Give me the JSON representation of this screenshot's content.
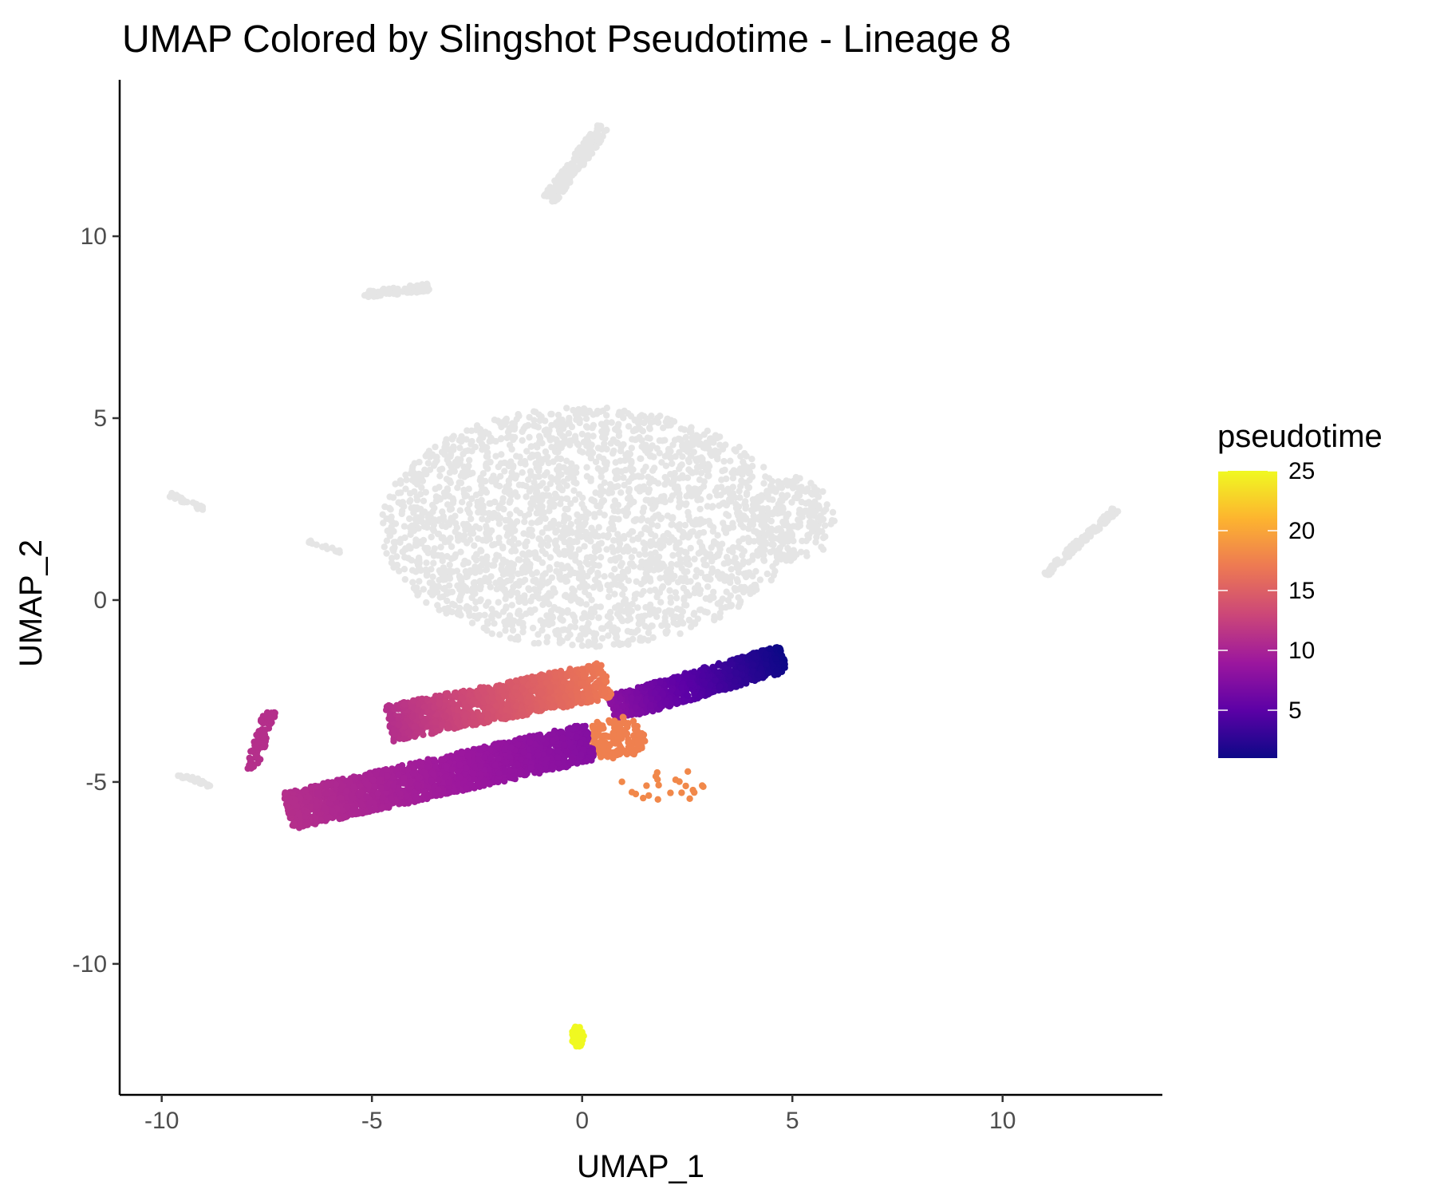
{
  "chart_data": {
    "type": "scatter",
    "title": "UMAP Colored by Slingshot Pseudotime - Lineage 8",
    "xlabel": "UMAP_1",
    "ylabel": "UMAP_2",
    "xlim": [
      -11,
      13.8
    ],
    "ylim": [
      -13.6,
      14.3
    ],
    "x_ticks": [
      -10,
      -5,
      0,
      5,
      10
    ],
    "x_tick_labels": [
      "-10",
      "-5",
      "0",
      "5",
      "10"
    ],
    "y_ticks": [
      -10,
      -5,
      0,
      5,
      10
    ],
    "y_tick_labels": [
      "-10",
      "-5",
      "0",
      "5",
      "10"
    ],
    "grid": false,
    "legend": {
      "title": "pseudotime",
      "placement": "right",
      "type": "colorbar",
      "range": [
        1,
        25
      ],
      "breaks": [
        5,
        10,
        15,
        20,
        25
      ],
      "break_labels": [
        "5",
        "10",
        "15",
        "20",
        "25"
      ],
      "palette": "plasma",
      "palette_stops": [
        "#0d0887",
        "#5c01a6",
        "#9c179e",
        "#cc4778",
        "#ed7953",
        "#fdb42f",
        "#f0f921"
      ]
    },
    "na_color": "#e5e5e5",
    "cell_groups": [
      {
        "name": "main-gray-blob",
        "kind": "ellipse",
        "cx": 0.1,
        "cy": 2.0,
        "rx": 4.9,
        "ry": 3.3,
        "n": 2400,
        "pseudotime": null
      },
      {
        "name": "gray-right-lobe",
        "kind": "ellipse",
        "cx": 5.0,
        "cy": 2.2,
        "rx": 1.0,
        "ry": 1.2,
        "n": 200,
        "pseudotime": null
      },
      {
        "name": "gray-top-island",
        "kind": "strip",
        "x0": -0.8,
        "y0": 11.0,
        "x1": 0.5,
        "y1": 13.0,
        "w": 0.35,
        "n": 180,
        "pseudotime": null
      },
      {
        "name": "gray-left-top-island",
        "kind": "strip",
        "x0": -5.2,
        "y0": 8.4,
        "x1": -3.6,
        "y1": 8.6,
        "w": 0.2,
        "n": 90,
        "pseudotime": null
      },
      {
        "name": "gray-far-right-island",
        "kind": "strip",
        "x0": 11.0,
        "y0": 0.7,
        "x1": 12.7,
        "y1": 2.5,
        "w": 0.18,
        "n": 110,
        "pseudotime": null
      },
      {
        "name": "gray-left-small-island",
        "kind": "strip",
        "x0": -9.8,
        "y0": 2.9,
        "x1": -9.0,
        "y1": 2.5,
        "w": 0.12,
        "n": 25,
        "pseudotime": null
      },
      {
        "name": "gray-left-mid-island",
        "kind": "strip",
        "x0": -6.5,
        "y0": 1.6,
        "x1": -5.7,
        "y1": 1.3,
        "w": 0.1,
        "n": 18,
        "pseudotime": null
      },
      {
        "name": "gray-bottom-left-tail",
        "kind": "strip",
        "x0": -9.6,
        "y0": -4.8,
        "x1": -8.8,
        "y1": -5.1,
        "w": 0.12,
        "n": 30,
        "pseudotime": null
      },
      {
        "name": "dark-blue-branch",
        "kind": "strip",
        "x0": 0.7,
        "y0": -3.0,
        "x1": 4.8,
        "y1": -1.6,
        "w": 0.75,
        "n": 900,
        "pseudotime_start": 8,
        "pseudotime_end": 1
      },
      {
        "name": "orange-junction",
        "kind": "ellipse",
        "cx": 0.8,
        "cy": -3.8,
        "rx": 0.7,
        "ry": 0.6,
        "n": 150,
        "pseudotime": 17.5
      },
      {
        "name": "orange-scatter",
        "kind": "ellipse",
        "cx": 1.9,
        "cy": -5.1,
        "rx": 1.0,
        "ry": 0.5,
        "n": 22,
        "pseudotime": 18
      },
      {
        "name": "upper-magenta-band",
        "kind": "strip",
        "x0": -4.6,
        "y0": -3.4,
        "x1": 0.6,
        "y1": -2.2,
        "w": 1.0,
        "n": 1300,
        "pseudotime_start": 11,
        "pseudotime_end": 17
      },
      {
        "name": "lower-purple-band",
        "kind": "strip",
        "x0": -7.0,
        "y0": -5.8,
        "x1": 0.2,
        "y1": -3.9,
        "w": 1.05,
        "n": 2000,
        "pseudotime_start": 11,
        "pseudotime_end": 7.5
      },
      {
        "name": "magenta-hook",
        "kind": "strip",
        "x0": -7.4,
        "y0": -3.0,
        "x1": -7.9,
        "y1": -4.7,
        "w": 0.3,
        "n": 70,
        "pseudotime": 11
      },
      {
        "name": "yellow-island",
        "kind": "ellipse",
        "cx": -0.1,
        "cy": -12.0,
        "rx": 0.15,
        "ry": 0.3,
        "n": 40,
        "pseudotime": 25
      }
    ]
  }
}
